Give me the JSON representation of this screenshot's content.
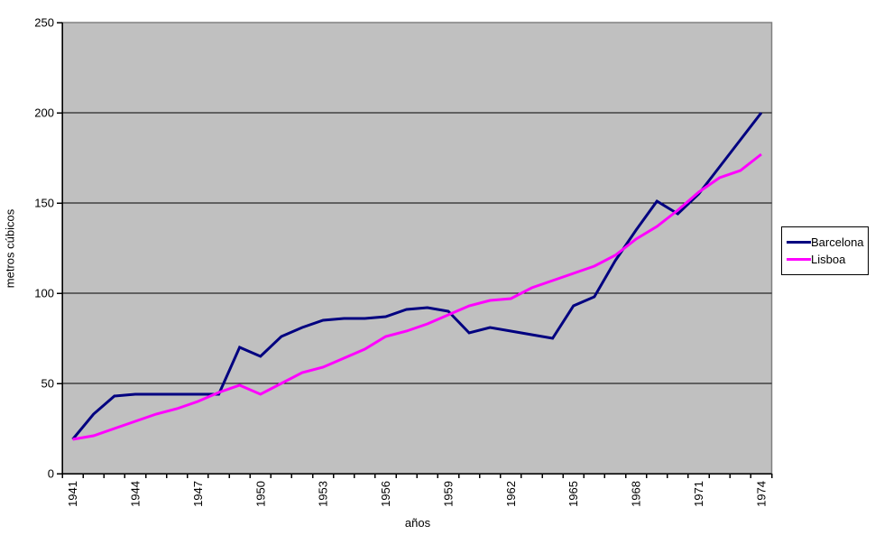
{
  "chart_data": {
    "type": "line",
    "title": "",
    "xlabel": "años",
    "ylabel": "metros cúbicos",
    "x": [
      1941,
      1942,
      1943,
      1944,
      1945,
      1946,
      1947,
      1948,
      1949,
      1950,
      1951,
      1952,
      1953,
      1954,
      1955,
      1956,
      1957,
      1958,
      1959,
      1960,
      1961,
      1962,
      1963,
      1964,
      1965,
      1966,
      1967,
      1968,
      1969,
      1970,
      1971,
      1972,
      1973,
      1974
    ],
    "xtick_labels": [
      "1941",
      "1944",
      "1947",
      "1950",
      "1953",
      "1956",
      "1959",
      "1962",
      "1965",
      "1968",
      "1971",
      "1974"
    ],
    "xtick_label_interval": 3,
    "yticks": [
      0,
      50,
      100,
      150,
      200,
      250
    ],
    "ylim": [
      0,
      250
    ],
    "grid": "horizontal-major",
    "legend_position": "right",
    "plot_bg_color": "#c0c0c0",
    "plot_border_color": "#808080",
    "gridline_color": "#000000",
    "axis_color": "#000000",
    "series": [
      {
        "name": "Barcelona",
        "color": "#000080",
        "values": [
          19,
          33,
          43,
          44,
          44,
          44,
          44,
          44,
          70,
          65,
          76,
          81,
          85,
          86,
          86,
          87,
          91,
          92,
          90,
          78,
          81,
          79,
          77,
          75,
          93,
          98,
          118,
          135,
          151,
          144,
          155,
          170,
          185,
          200
        ]
      },
      {
        "name": "Lisboa",
        "color": "#ff00ff",
        "values": [
          19,
          21,
          25,
          29,
          33,
          36,
          40,
          45,
          49,
          44,
          50,
          56,
          59,
          64,
          69,
          76,
          79,
          83,
          88,
          93,
          96,
          97,
          103,
          107,
          111,
          115,
          121,
          130,
          137,
          146,
          156,
          164,
          168,
          177
        ]
      }
    ]
  }
}
